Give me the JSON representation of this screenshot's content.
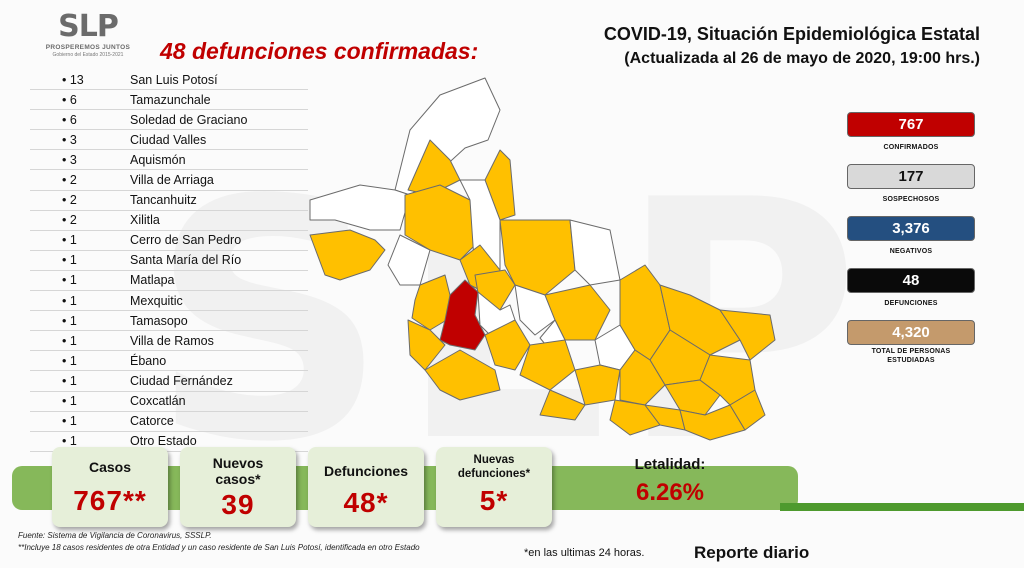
{
  "logo": {
    "mark": "SLP",
    "sub1": "PROSPEREMOS JUNTOS",
    "sub2": "Gobierno del Estado 2015-2021"
  },
  "deaths_title": "48 defunciones confirmadas:",
  "title": "COVID-19, Situación Epidemiológica Estatal",
  "subtitle": "(Actualizada al 26 de mayo de 2020, 19:00 hrs.)",
  "municipalities": [
    {
      "count": "• 13",
      "name": "San Luis Potosí"
    },
    {
      "count": "• 6",
      "name": "Tamazunchale"
    },
    {
      "count": "• 6",
      "name": "Soledad de Graciano"
    },
    {
      "count": "• 3",
      "name": "Ciudad Valles"
    },
    {
      "count": "• 3",
      "name": "Aquismón"
    },
    {
      "count": "• 2",
      "name": "Villa de Arriaga"
    },
    {
      "count": "• 2",
      "name": "Tancanhuitz"
    },
    {
      "count": "• 2",
      "name": "Xilitla"
    },
    {
      "count": "• 1",
      "name": "Cerro de San Pedro"
    },
    {
      "count": "• 1",
      "name": "Santa María del Río"
    },
    {
      "count": "• 1",
      "name": "Matlapa"
    },
    {
      "count": "• 1",
      "name": "Mexquitic"
    },
    {
      "count": "• 1",
      "name": "Tamasopo"
    },
    {
      "count": "• 1",
      "name": "Villa de Ramos"
    },
    {
      "count": "• 1",
      "name": "Ébano"
    },
    {
      "count": "• 1",
      "name": "Ciudad Fernández"
    },
    {
      "count": "• 1",
      "name": "Coxcatlán"
    },
    {
      "count": "• 1",
      "name": "Catorce"
    },
    {
      "count": "• 1",
      "name": "Otro Estado"
    }
  ],
  "stats": {
    "confirmed": {
      "value": "767",
      "label": "CONFIRMADOS",
      "color": "#c00000"
    },
    "suspected": {
      "value": "177",
      "label": "SOSPECHOSOS",
      "color": "#d9d9d9"
    },
    "negative": {
      "value": "3,376",
      "label": "NEGATIVOS",
      "color": "#244f80"
    },
    "deaths": {
      "value": "48",
      "label": "DEFUNCIONES",
      "color": "#0a0a0a"
    },
    "studied": {
      "value": "4,320",
      "label": "TOTAL DE PERSONAS ESTUDIADAS",
      "color": "#c49a6c"
    }
  },
  "banner": {
    "cases_label": "Casos",
    "cases_value": "767**",
    "new_cases_label": "Nuevos casos*",
    "new_cases_value": "39",
    "deaths_label": "Defunciones",
    "deaths_value": "48*",
    "new_deaths_label": "Nuevas defunciones*",
    "new_deaths_value": "5*",
    "lethality_label": "Letalidad:",
    "lethality_value": "6.26%"
  },
  "footer": {
    "source": "Fuente: Sistema de Vigilancia de Coronavirus, SSSLP.",
    "note": "**Incluye 18 casos residentes de otra Entidad y un caso residente de San Luis Potosí, identificada en otro Estado",
    "note24": "*en las ultimas 24 horas.",
    "report": "Reporte diario"
  },
  "map_colors": {
    "with_cases": "#ffc000",
    "with_deaths": "#c00000",
    "no_cases": "#ffffff",
    "border": "#6b6b6b"
  }
}
